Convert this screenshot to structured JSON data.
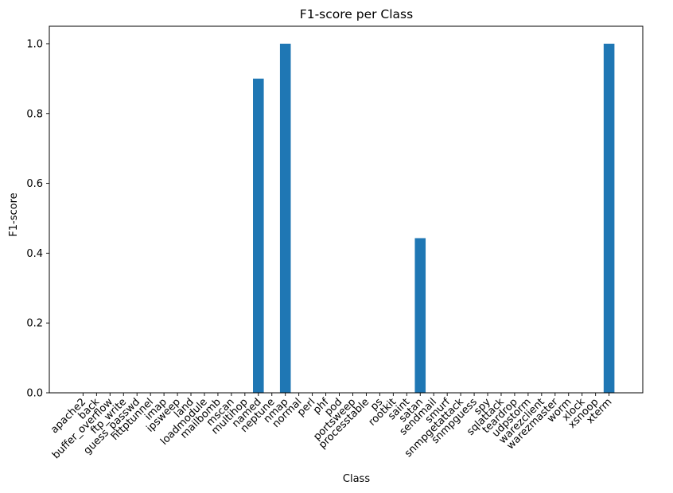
{
  "chart_data": {
    "type": "bar",
    "title": "F1-score per Class",
    "xlabel": "Class",
    "ylabel": "F1-score",
    "ylim": [
      0,
      1.05
    ],
    "yticks": [
      "0.0",
      "0.2",
      "0.4",
      "0.6",
      "0.8",
      "1.0"
    ],
    "ytick_values": [
      0,
      0.2,
      0.4,
      0.6,
      0.8,
      1.0
    ],
    "grid": false,
    "bar_color": "#1f77b4",
    "categories": [
      "apache2",
      "back",
      "buffer_overflow",
      "ftp_write",
      "guess_passwd",
      "httptunnel",
      "imap",
      "ipsweep",
      "land",
      "loadmodule",
      "mailbomb",
      "mscan",
      "multihop",
      "named",
      "neptune",
      "nmap",
      "normal",
      "perl",
      "phf",
      "pod",
      "portsweep",
      "processtable",
      "ps",
      "rootkit",
      "saint",
      "satan",
      "sendmail",
      "smurf",
      "snmpgetattack",
      "snmpguess",
      "spy",
      "sqlattack",
      "teardrop",
      "udpstorm",
      "warezclient",
      "warezmaster",
      "worm",
      "xlock",
      "xsnoop",
      "xterm"
    ],
    "values": [
      0,
      0,
      0,
      0,
      0,
      0,
      0,
      0,
      0,
      0,
      0,
      0,
      0,
      0.9,
      0,
      1.0,
      0,
      0,
      0,
      0,
      0,
      0,
      0,
      0,
      0,
      0.443,
      0,
      0,
      0,
      0,
      0,
      0,
      0,
      0,
      0,
      0,
      0,
      0,
      0,
      1.0
    ]
  }
}
